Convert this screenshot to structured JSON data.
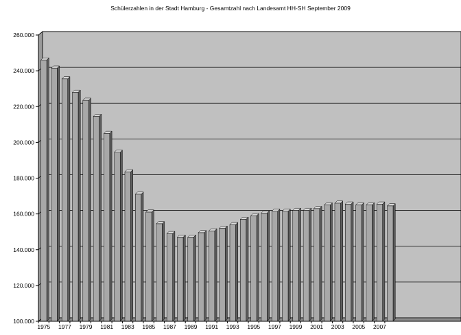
{
  "chart_data": {
    "type": "bar",
    "title": "Schülerzahlen in der Stadt Hamburg - Gesamtzahl nach Landesamt HH-SH September 2009",
    "xlabel": "",
    "ylabel": "",
    "ylim": [
      100000,
      260000
    ],
    "yticks": [
      100000,
      120000,
      140000,
      160000,
      180000,
      200000,
      220000,
      240000,
      260000
    ],
    "ytick_labels": [
      "100.000",
      "120.000",
      "140.000",
      "160.000",
      "180.000",
      "200.000",
      "220.000",
      "240.000",
      "260.000"
    ],
    "categories": [
      "1975",
      "1976",
      "1977",
      "1978",
      "1979",
      "1980",
      "1981",
      "1982",
      "1983",
      "1984",
      "1985",
      "1986",
      "1987",
      "1988",
      "1989",
      "1990",
      "1991",
      "1992",
      "1993",
      "1994",
      "1995",
      "1996",
      "1997",
      "1998",
      "1999",
      "2000",
      "2001",
      "2002",
      "2003",
      "2004",
      "2005",
      "2006",
      "2007",
      "2008"
    ],
    "xtick_labels": [
      "1975",
      "1977",
      "1979",
      "1981",
      "1983",
      "1985",
      "1987",
      "1989",
      "1991",
      "1993",
      "1995",
      "1997",
      "1999",
      "2001",
      "2003",
      "2005",
      "2007"
    ],
    "values": [
      246000,
      241500,
      235500,
      228000,
      223500,
      214500,
      205000,
      194500,
      183500,
      171000,
      161000,
      154500,
      149000,
      147000,
      147000,
      149500,
      150500,
      152000,
      154000,
      157000,
      159000,
      160500,
      161500,
      161500,
      162000,
      162000,
      163000,
      165000,
      166000,
      165500,
      165000,
      165000,
      165500,
      164500
    ],
    "grid": true,
    "legend": "none",
    "colors": {
      "plot_background": "#c0c0c0",
      "bar_front": "#a8a8a8",
      "bar_side": "#5e5e5e",
      "bar_top": "#d8d8d8",
      "gridline": "#000000"
    }
  }
}
